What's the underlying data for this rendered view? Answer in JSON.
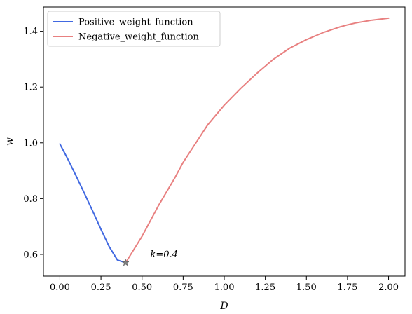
{
  "chart_data": {
    "type": "line",
    "xlabel": "D",
    "ylabel": "w",
    "xlim": [
      -0.1,
      2.1
    ],
    "ylim": [
      0.522,
      1.487
    ],
    "xticks": [
      0.0,
      0.25,
      0.5,
      0.75,
      1.0,
      1.25,
      1.5,
      1.75,
      2.0
    ],
    "xtick_labels": [
      "0.00",
      "0.25",
      "0.50",
      "0.75",
      "1.00",
      "1.25",
      "1.50",
      "1.75",
      "2.00"
    ],
    "yticks": [
      0.6,
      0.8,
      1.0,
      1.2,
      1.4
    ],
    "ytick_labels": [
      "0.6",
      "0.8",
      "1.0",
      "1.2",
      "1.4"
    ],
    "grid": false,
    "legend_position": "top-left",
    "series": [
      {
        "name": "Positive_weight_function",
        "color": "#4169e1",
        "x": [
          0.0,
          0.05,
          0.1,
          0.15,
          0.2,
          0.25,
          0.3,
          0.35,
          0.4
        ],
        "y": [
          0.996,
          0.94,
          0.88,
          0.818,
          0.755,
          0.69,
          0.628,
          0.58,
          0.57
        ]
      },
      {
        "name": "Negative_weight_function",
        "color": "#e88080",
        "x": [
          0.4,
          0.5,
          0.6,
          0.7,
          0.75,
          0.8,
          0.9,
          1.0,
          1.1,
          1.2,
          1.25,
          1.3,
          1.4,
          1.5,
          1.6,
          1.7,
          1.75,
          1.8,
          1.9,
          2.0
        ],
        "y": [
          0.57,
          0.665,
          0.775,
          0.875,
          0.93,
          0.975,
          1.065,
          1.135,
          1.195,
          1.25,
          1.275,
          1.3,
          1.34,
          1.37,
          1.395,
          1.415,
          1.423,
          1.43,
          1.44,
          1.447
        ]
      }
    ],
    "marker": {
      "x": 0.4,
      "y": 0.57,
      "symbol": "star",
      "color": "#7f7f7f"
    },
    "annotation": {
      "text": "k=0.4",
      "x": 0.55,
      "y": 0.6
    }
  }
}
